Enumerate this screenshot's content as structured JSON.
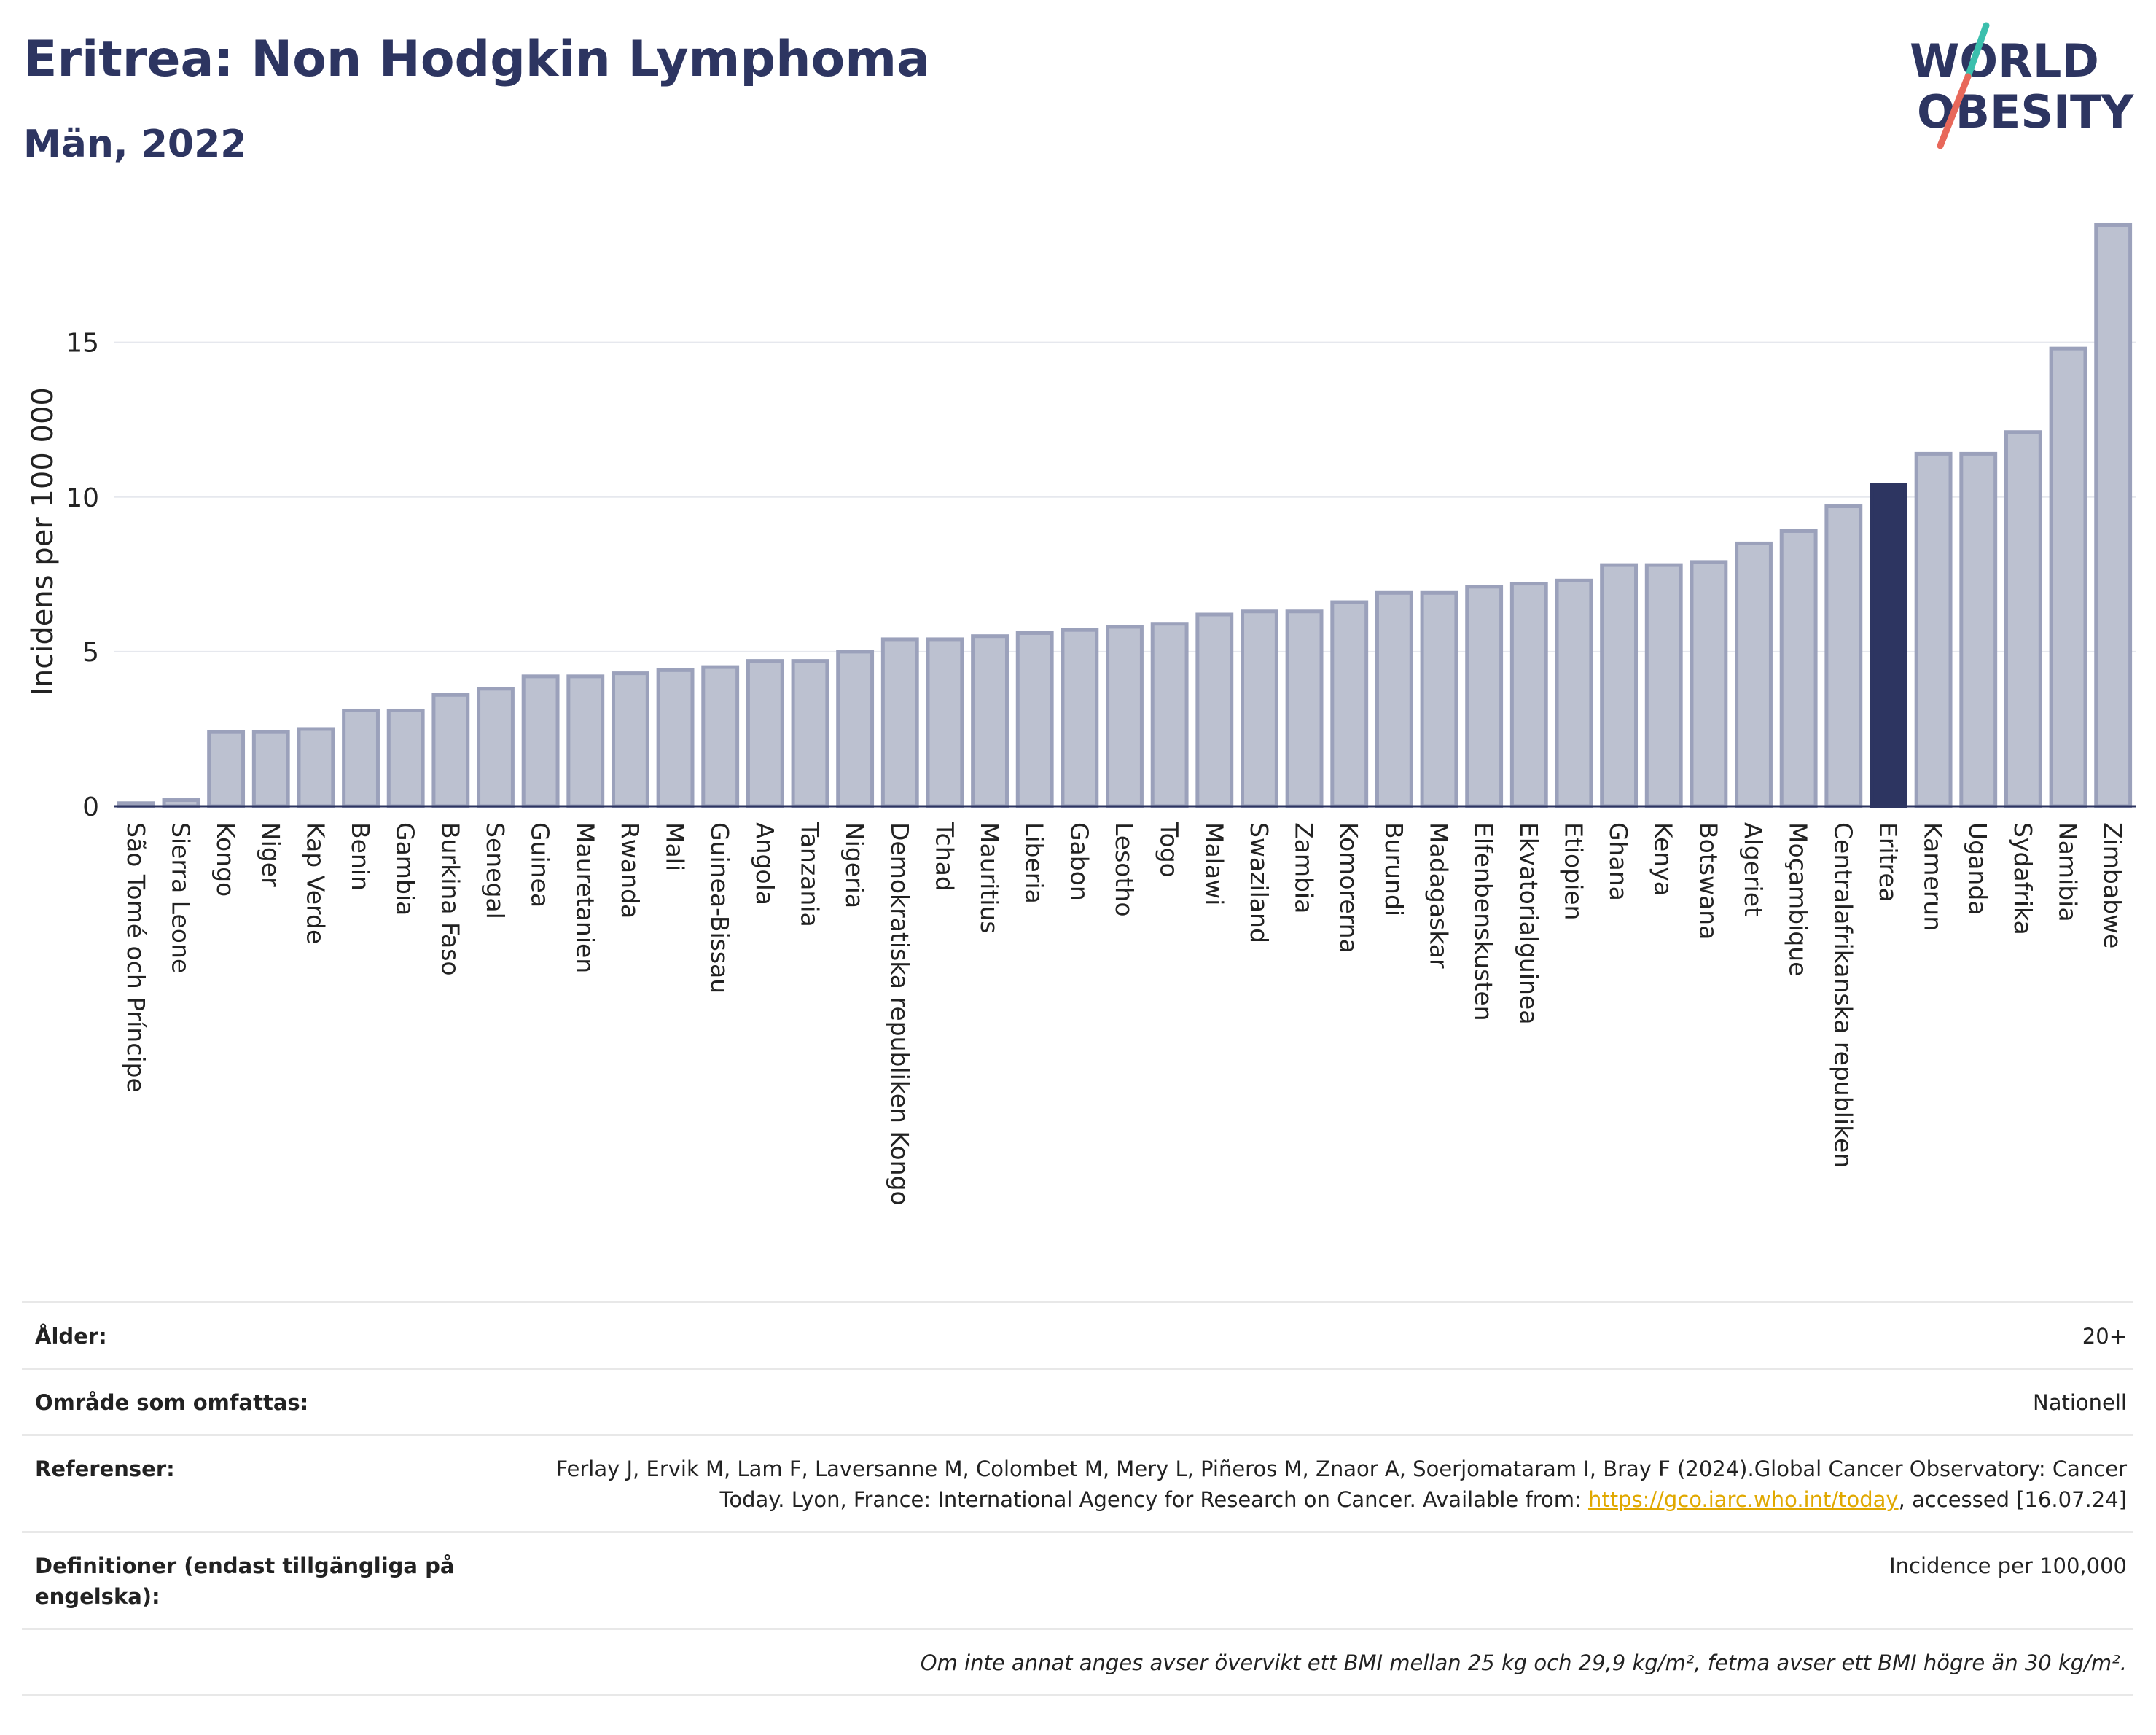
{
  "header": {
    "title": "Eritrea: Non Hodgkin Lymphoma",
    "subtitle": "Män, 2022",
    "logo_line1": "WORLD",
    "logo_line2": "OBESITY"
  },
  "colors": {
    "bar": "#bcc1d0",
    "bar_stroke": "#9ba1bb",
    "highlight": "#2d3561",
    "text": "#2d3561",
    "logo_slash_top": "#3bbfad",
    "logo_slash_bottom": "#e8685a"
  },
  "chart_data": {
    "type": "bar",
    "ylabel": "Incidens per 100 000",
    "ylim": [
      0,
      19
    ],
    "yticks": [
      0,
      5,
      10,
      15
    ],
    "grid": true,
    "highlight": "Eritrea",
    "categories": [
      "São Tomé och Príncipe",
      "Sierra Leone",
      "Kongo",
      "Niger",
      "Kap Verde",
      "Benin",
      "Gambia",
      "Burkina Faso",
      "Senegal",
      "Guinea",
      "Mauretanien",
      "Rwanda",
      "Mali",
      "Guinea-Bissau",
      "Angola",
      "Tanzania",
      "Nigeria",
      "Demokratiska republiken Kongo",
      "Tchad",
      "Mauritius",
      "Liberia",
      "Gabon",
      "Lesotho",
      "Togo",
      "Malawi",
      "Swaziland",
      "Zambia",
      "Komorerna",
      "Burundi",
      "Madagaskar",
      "Elfenbenskusten",
      "Ekvatorialguinea",
      "Etiopien",
      "Ghana",
      "Kenya",
      "Botswana",
      "Algeriet",
      "Moçambique",
      "Centralafrikanska republiken",
      "Eritrea",
      "Kamerun",
      "Uganda",
      "Sydafrika",
      "Namibia",
      "Zimbabwe"
    ],
    "values": [
      0.1,
      0.2,
      2.4,
      2.4,
      2.5,
      3.1,
      3.1,
      3.6,
      3.8,
      4.2,
      4.2,
      4.3,
      4.4,
      4.5,
      4.7,
      4.7,
      5.0,
      5.4,
      5.4,
      5.5,
      5.6,
      5.7,
      5.8,
      5.9,
      6.2,
      6.3,
      6.3,
      6.6,
      6.9,
      6.9,
      7.1,
      7.2,
      7.3,
      7.8,
      7.8,
      7.9,
      8.5,
      8.9,
      9.7,
      10.4,
      11.4,
      11.4,
      12.1,
      14.8,
      18.8
    ]
  },
  "meta": {
    "age_label": "Ålder:",
    "age_value": "20+",
    "area_label": "Område som omfattas:",
    "area_value": "Nationell",
    "ref_label": "Referenser:",
    "ref_text_1": "Ferlay J, Ervik M, Lam F, Laversanne M, Colombet M, Mery L, Piñeros M, Znaor A, Soerjomataram I, Bray F (2024).Global Cancer Observatory: Cancer Today. Lyon, France: International Agency for Research on Cancer. Available from: ",
    "ref_link": "https://gco.iarc.who.int/today",
    "ref_text_2": ", accessed [16.07.24]",
    "def_label": "Definitioner (endast tillgängliga på engelska):",
    "def_value": "Incidence per 100,000",
    "note": "Om inte annat anges avser övervikt ett BMI mellan 25 kg och 29,9 kg/m², fetma avser ett BMI högre än 30 kg/m²."
  }
}
